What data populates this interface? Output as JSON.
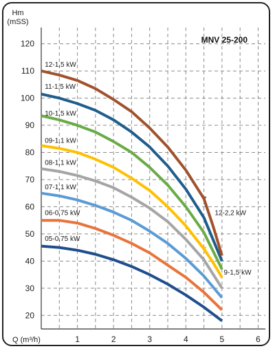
{
  "chart_data": {
    "type": "line",
    "title": "MNV 25-200",
    "ylabel_line1": "Hm",
    "ylabel_line2": "(mSS)",
    "xlabel": "Q (m³/h)",
    "xlim": [
      0,
      6.2
    ],
    "ylim": [
      15,
      126
    ],
    "xticks": [
      1,
      2,
      3,
      4,
      5,
      6
    ],
    "yticks": [
      20,
      30,
      40,
      50,
      60,
      70,
      80,
      90,
      100,
      110,
      120
    ],
    "grid": true,
    "series": [
      {
        "name": "05-0,75 kW",
        "color": "#1f4e8c",
        "x": [
          0,
          0.5,
          1,
          1.5,
          2,
          2.5,
          3,
          3.5,
          4,
          4.5,
          5
        ],
        "y": [
          45.5,
          45,
          44,
          42.5,
          40.5,
          38,
          35,
          31.5,
          27.5,
          23,
          18
        ]
      },
      {
        "name": "06-0,75 kW",
        "color": "#e8743b",
        "x": [
          0,
          0.5,
          1,
          1.5,
          2,
          2.5,
          3,
          3.5,
          4,
          4.5,
          5
        ],
        "y": [
          55,
          55,
          54,
          52,
          49.5,
          46.5,
          43,
          38.5,
          34,
          28.5,
          22
        ]
      },
      {
        "name": "07-1,1 kW",
        "color": "#5b9bd5",
        "x": [
          0,
          0.5,
          1,
          1.5,
          2,
          2.5,
          3,
          3.5,
          4,
          4.5,
          5
        ],
        "y": [
          65,
          64,
          62.5,
          60.5,
          58,
          55,
          51,
          46.5,
          41,
          34.5,
          26.5
        ]
      },
      {
        "name": "08-1,1 kW",
        "color": "#a5a5a5",
        "x": [
          0,
          0.5,
          1,
          1.5,
          2,
          2.5,
          3,
          3.5,
          4,
          4.5,
          5
        ],
        "y": [
          74,
          73,
          71.5,
          69.5,
          67,
          63.5,
          59.5,
          54.5,
          48,
          40.5,
          30
        ]
      },
      {
        "name": "09-1,1 kW",
        "color": "#ffc000",
        "x": [
          0,
          0.5,
          1,
          1.5,
          2,
          2.5,
          3,
          3.5,
          4,
          4.5
        ],
        "y": [
          82.5,
          81.5,
          80,
          77.5,
          74.5,
          70.5,
          66,
          60,
          53,
          44.5
        ]
      },
      {
        "name": "9-1,5 kW",
        "color": "#ffc000",
        "x": [
          4.5,
          4.75,
          5
        ],
        "y": [
          44.5,
          39.5,
          34
        ]
      },
      {
        "name": "10-1,5 kW",
        "color": "#6aab46",
        "x": [
          0,
          0.5,
          1,
          1.5,
          2,
          2.5,
          3,
          3.5,
          4,
          4.5,
          5
        ],
        "y": [
          93.5,
          92,
          90,
          87.5,
          84,
          80,
          74.5,
          68,
          60,
          50.5,
          37
        ]
      },
      {
        "name": "11-1,5 kW",
        "color": "#1f5d8c",
        "x": [
          0,
          0.5,
          1,
          1.5,
          2,
          2.5,
          3,
          3.5,
          4,
          4.5,
          5
        ],
        "y": [
          101.5,
          100,
          98,
          95.5,
          92,
          87.5,
          82,
          75,
          66.5,
          56,
          40
        ]
      },
      {
        "name": "12-1,5 kW",
        "color": "#a0522d",
        "x": [
          0,
          0.5,
          1,
          1.5,
          2,
          2.5,
          3,
          3.5,
          4,
          4.5
        ],
        "y": [
          110,
          108.5,
          106.5,
          103.5,
          99.5,
          95,
          89,
          82,
          73.5,
          63
        ]
      },
      {
        "name": "12-2,2 kW",
        "color": "#a0522d",
        "x": [
          4.5,
          4.75,
          5
        ],
        "y": [
          63,
          53,
          42
        ]
      }
    ],
    "labels": [
      {
        "text": "12-1,5 kW",
        "x": 0.1,
        "y": 111.5
      },
      {
        "text": "11-1,5 kW",
        "x": 0.1,
        "y": 103.5
      },
      {
        "text": "10-1,5 kW",
        "x": 0.1,
        "y": 93.5
      },
      {
        "text": "09-1,1 kW",
        "x": 0.1,
        "y": 83.5
      },
      {
        "text": "08-1,1 kW",
        "x": 0.1,
        "y": 75.5
      },
      {
        "text": "07-1,1 kW",
        "x": 0.1,
        "y": 66.5
      },
      {
        "text": "06-0,75 kW",
        "x": 0.1,
        "y": 57
      },
      {
        "text": "05-0,75 kW",
        "x": 0.1,
        "y": 47.5
      },
      {
        "text": "12-2,2 kW",
        "x": 4.8,
        "y": 57
      },
      {
        "text": "9-1,5 kW",
        "x": 5.05,
        "y": 35
      }
    ]
  }
}
